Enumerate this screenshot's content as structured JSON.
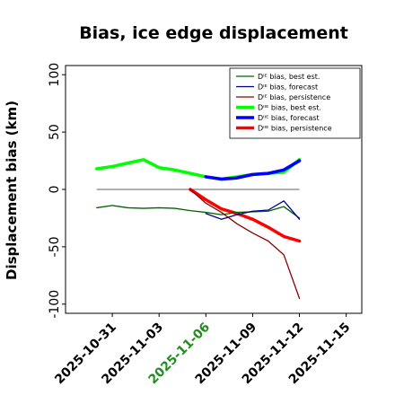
{
  "chart_data": {
    "type": "line",
    "title": "Bias, ice edge displacement",
    "xlabel": "",
    "ylabel": "Displacement bias (km)",
    "xlim": [
      "2025-10-28",
      "2025-11-16"
    ],
    "ylim": [
      -108,
      108
    ],
    "x_ticks": [
      "2025-10-31",
      "2025-11-03",
      "2025-11-06",
      "2025-11-09",
      "2025-11-12",
      "2025-11-15"
    ],
    "y_ticks": [
      -100,
      -50,
      0,
      50,
      100
    ],
    "highlight_tick": "2025-11-06",
    "highlight_color": "#228B22",
    "zero_line": {
      "value": 0,
      "from": "2025-10-30",
      "to": "2025-11-12",
      "color": "#808080"
    },
    "legend_position": "top-right",
    "series": [
      {
        "name": "Dᴵᴱ bias, best est.",
        "color": "#006400",
        "width": 1.3,
        "points": [
          [
            "2025-10-30",
            -16
          ],
          [
            "2025-10-31",
            -14
          ],
          [
            "2025-11-01",
            -16
          ],
          [
            "2025-11-02",
            -16.5
          ],
          [
            "2025-11-03",
            -16
          ],
          [
            "2025-11-04",
            -16.5
          ],
          [
            "2025-11-05",
            -18.5
          ],
          [
            "2025-11-06",
            -20
          ],
          [
            "2025-11-07",
            -22
          ],
          [
            "2025-11-08",
            -20
          ],
          [
            "2025-11-09",
            -19.5
          ],
          [
            "2025-11-10",
            -19
          ],
          [
            "2025-11-11",
            -15
          ],
          [
            "2025-11-12",
            -25
          ]
        ]
      },
      {
        "name": "Dᴵᴱ bias, forecast",
        "color": "#00008B",
        "width": 1.3,
        "points": [
          [
            "2025-11-06",
            -21
          ],
          [
            "2025-11-07",
            -26
          ],
          [
            "2025-11-08",
            -22
          ],
          [
            "2025-11-09",
            -19
          ],
          [
            "2025-11-10",
            -18
          ],
          [
            "2025-11-11",
            -10
          ],
          [
            "2025-11-12",
            -26
          ]
        ]
      },
      {
        "name": "Dᴵᴱ bias, persistence",
        "color": "#8B0000",
        "width": 1.3,
        "points": [
          [
            "2025-11-05",
            0
          ],
          [
            "2025-11-06",
            -12
          ],
          [
            "2025-11-07",
            -20
          ],
          [
            "2025-11-08",
            -30
          ],
          [
            "2025-11-09",
            -38
          ],
          [
            "2025-11-10",
            -45
          ],
          [
            "2025-11-11",
            -57
          ],
          [
            "2025-11-12",
            -95
          ]
        ]
      },
      {
        "name": "Dᴵᴵᴱ bias, best est.",
        "color": "#00FF00",
        "width": 3.5,
        "points": [
          [
            "2025-10-30",
            18
          ],
          [
            "2025-10-31",
            20
          ],
          [
            "2025-11-01",
            23
          ],
          [
            "2025-11-02",
            26
          ],
          [
            "2025-11-03",
            19
          ],
          [
            "2025-11-04",
            17
          ],
          [
            "2025-11-05",
            14
          ],
          [
            "2025-11-06",
            11
          ],
          [
            "2025-11-07",
            9
          ],
          [
            "2025-11-08",
            11
          ],
          [
            "2025-11-09",
            13
          ],
          [
            "2025-11-10",
            14
          ],
          [
            "2025-11-11",
            15
          ],
          [
            "2025-11-12",
            26
          ]
        ]
      },
      {
        "name": "Dᴵᴵᴱ bias, forecast",
        "color": "#0000FF",
        "width": 3.5,
        "points": [
          [
            "2025-11-06",
            11
          ],
          [
            "2025-11-07",
            9
          ],
          [
            "2025-11-08",
            10
          ],
          [
            "2025-11-09",
            13
          ],
          [
            "2025-11-10",
            14
          ],
          [
            "2025-11-11",
            17
          ],
          [
            "2025-11-12",
            25
          ]
        ]
      },
      {
        "name": "Dᴵᴵᴱ bias, persistence",
        "color": "#FF0000",
        "width": 3.5,
        "points": [
          [
            "2025-11-05",
            0
          ],
          [
            "2025-11-06",
            -9
          ],
          [
            "2025-11-07",
            -17
          ],
          [
            "2025-11-08",
            -21
          ],
          [
            "2025-11-09",
            -26
          ],
          [
            "2025-11-10",
            -33
          ],
          [
            "2025-11-11",
            -41
          ],
          [
            "2025-11-12",
            -45
          ]
        ]
      }
    ]
  }
}
